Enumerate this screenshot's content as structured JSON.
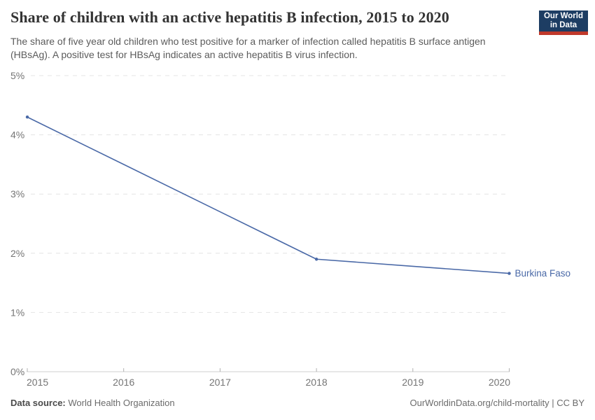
{
  "header": {
    "title": "Share of children with an active hepatitis B infection, 2015 to 2020",
    "subtitle": "The share of five year old children who test positive for a marker of infection called hepatitis B surface antigen (HBsAg). A positive test for HBsAg indicates an active hepatitis B virus infection.",
    "logo": {
      "line1": "Our World",
      "line2": "in Data",
      "bg_color": "#1d3d63",
      "accent_color": "#c0392b"
    }
  },
  "chart_data": {
    "type": "line",
    "x": [
      2015,
      2016,
      2017,
      2018,
      2019,
      2020
    ],
    "series": [
      {
        "name": "Burkina Faso",
        "color": "#4a69a7",
        "values": [
          4.3,
          3.5,
          2.7,
          1.9,
          1.78,
          1.66
        ],
        "marker_x": [
          2015,
          2018,
          2020
        ]
      }
    ],
    "title": "Share of children with an active hepatitis B infection, 2015 to 2020",
    "xlabel": "",
    "ylabel": "",
    "xlim": [
      2015,
      2020
    ],
    "ylim": [
      0,
      5
    ],
    "x_ticks": [
      "2015",
      "2016",
      "2017",
      "2018",
      "2019",
      "2020"
    ],
    "y_ticks": [
      "0%",
      "1%",
      "2%",
      "3%",
      "4%",
      "5%"
    ],
    "grid": "horizontal-dashed",
    "legend_position": "end-of-line-label",
    "end_label": "Burkina Faso",
    "colors": {
      "gridline": "#e4e4e4",
      "axis_line": "#cfcfcf",
      "tick_mark": "#b0b0b0",
      "tick_label": "#757575"
    }
  },
  "footer": {
    "source_label": "Data source:",
    "source_value": "World Health Organization",
    "attribution": "OurWorldinData.org/child-mortality | CC BY"
  }
}
